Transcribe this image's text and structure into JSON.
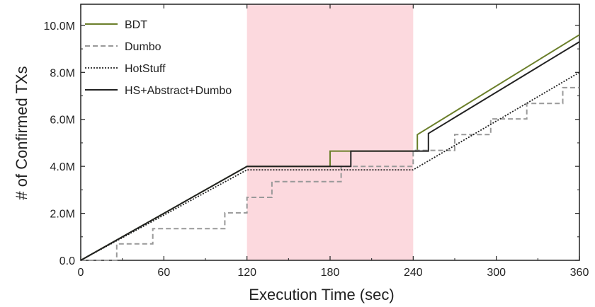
{
  "chart_data": {
    "type": "line",
    "title": "",
    "xlabel": "Execution Time (sec)",
    "ylabel": "# of Confirmed TXs",
    "xlim": [
      0,
      360
    ],
    "ylim": [
      0,
      10900000
    ],
    "x_ticks": [
      0,
      60,
      120,
      180,
      240,
      300,
      360
    ],
    "x_tick_labels": [
      "0",
      "60",
      "120",
      "180",
      "240",
      "300",
      "360"
    ],
    "y_ticks": [
      0,
      2000000,
      4000000,
      6000000,
      8000000,
      10000000
    ],
    "y_tick_labels": [
      "0.0",
      "2.0M",
      "4.0M",
      "6.0M",
      "8.0M",
      "10.0M"
    ],
    "shaded_region": {
      "x_start": 120,
      "x_end": 240,
      "color": "#fcd9de"
    },
    "legend_position": "top-left",
    "series": [
      {
        "name": "BDT",
        "color": "#6b7f2a",
        "dash": "solid",
        "points": [
          [
            0,
            0
          ],
          [
            120,
            4000000
          ],
          [
            180,
            4000000
          ],
          [
            180,
            4650000
          ],
          [
            243,
            4650000
          ],
          [
            243,
            5350000
          ],
          [
            360,
            9600000
          ]
        ]
      },
      {
        "name": "Dumbo",
        "color": "#999999",
        "dash": "dashed",
        "points": [
          [
            0,
            0
          ],
          [
            26,
            0
          ],
          [
            26,
            700000
          ],
          [
            52,
            700000
          ],
          [
            52,
            1350000
          ],
          [
            104,
            1350000
          ],
          [
            104,
            2020000
          ],
          [
            120,
            2020000
          ],
          [
            120,
            2680000
          ],
          [
            138,
            2680000
          ],
          [
            138,
            3350000
          ],
          [
            188,
            3350000
          ],
          [
            188,
            4000000
          ],
          [
            240,
            4000000
          ],
          [
            240,
            4680000
          ],
          [
            270,
            4680000
          ],
          [
            270,
            5350000
          ],
          [
            296,
            5350000
          ],
          [
            296,
            6020000
          ],
          [
            322,
            6020000
          ],
          [
            322,
            6680000
          ],
          [
            348,
            6680000
          ],
          [
            348,
            7350000
          ],
          [
            360,
            7350000
          ]
        ]
      },
      {
        "name": "HotStuff",
        "color": "#222222",
        "dash": "dotted",
        "points": [
          [
            0,
            0
          ],
          [
            120,
            3850000
          ],
          [
            240,
            3850000
          ],
          [
            360,
            8000000
          ]
        ]
      },
      {
        "name": "HS+Abstract+Dumbo",
        "color": "#222222",
        "dash": "solid",
        "points": [
          [
            0,
            0
          ],
          [
            120,
            4000000
          ],
          [
            195,
            4000000
          ],
          [
            195,
            4650000
          ],
          [
            251,
            4650000
          ],
          [
            251,
            5400000
          ],
          [
            360,
            9300000
          ]
        ]
      }
    ]
  }
}
